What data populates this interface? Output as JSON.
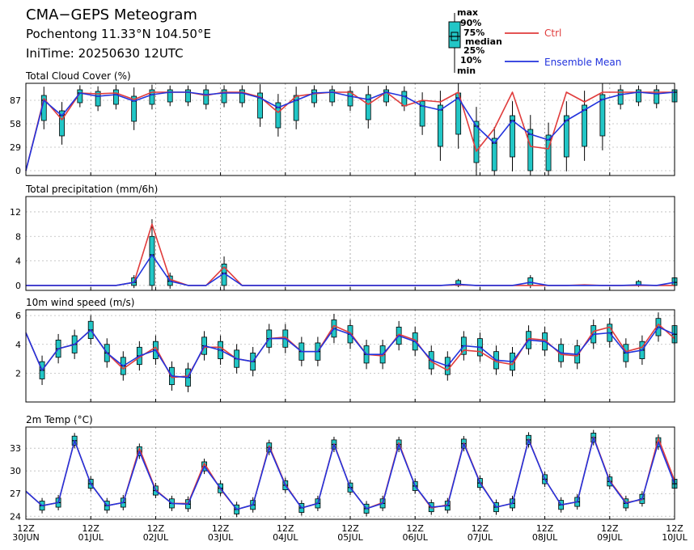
{
  "header": {
    "title": "CMA−GEPS Meteogram",
    "location": "Pochentong 11.33°N 104.50°E",
    "init_time": "IniTime: 20250630 12UTC"
  },
  "legend": {
    "box_labels": [
      "max",
      "90%",
      "75%",
      "median",
      "25%",
      "10%",
      "min"
    ],
    "ctrl_label": "Ctrl",
    "mean_label": "Ensemble Mean",
    "colors": {
      "ctrl": "#e03c3c",
      "mean": "#2233dd",
      "box": "#22c6c6"
    }
  },
  "x_axis": {
    "ticks": [
      {
        "top": "12Z",
        "bottom": "30JUN"
      },
      {
        "top": "12Z",
        "bottom": "01JUL"
      },
      {
        "top": "12Z",
        "bottom": "02JUL"
      },
      {
        "top": "12Z",
        "bottom": "03JUL"
      },
      {
        "top": "12Z",
        "bottom": "04JUL"
      },
      {
        "top": "12Z",
        "bottom": "05JUL"
      },
      {
        "top": "12Z",
        "bottom": "06JUL"
      },
      {
        "top": "12Z",
        "bottom": "07JUL"
      },
      {
        "top": "12Z",
        "bottom": "08JUL"
      },
      {
        "top": "12Z",
        "bottom": "09JUL"
      },
      {
        "top": "12Z",
        "bottom": "10JUL"
      }
    ]
  },
  "chart_data": [
    {
      "type": "line",
      "title": "Total Cloud Cover (%)",
      "ylim": [
        -6,
        108
      ],
      "yticks": [
        0,
        29,
        58,
        87
      ],
      "series": [
        {
          "name": "Ctrl",
          "values": [
            0,
            89,
            63,
            96,
            95,
            96,
            88,
            97,
            97,
            97,
            93,
            97,
            97,
            91,
            72,
            92,
            95,
            97,
            97,
            82,
            97,
            80,
            87,
            85,
            97,
            24,
            52,
            97,
            30,
            27,
            97,
            85,
            97,
            97,
            97,
            97,
            97
          ]
        },
        {
          "name": "Ensemble Mean",
          "values": [
            0,
            87,
            68,
            96,
            92,
            94,
            86,
            94,
            97,
            97,
            94,
            96,
            96,
            90,
            78,
            87,
            96,
            97,
            92,
            88,
            97,
            92,
            80,
            75,
            90,
            55,
            34,
            62,
            45,
            38,
            62,
            75,
            88,
            94,
            97,
            95,
            97
          ]
        }
      ]
    },
    {
      "type": "line",
      "title": "Total precipitation (mm/6h)",
      "ylim": [
        -0.8,
        14.5
      ],
      "yticks": [
        0,
        4,
        8,
        12
      ],
      "series": [
        {
          "name": "Ctrl",
          "values": [
            0,
            0,
            0,
            0,
            0,
            0,
            0.5,
            10,
            1,
            0,
            0,
            3,
            0,
            0,
            0,
            0,
            0,
            0,
            0,
            0,
            0,
            0,
            0,
            0,
            0.1,
            0,
            0,
            0,
            0,
            0,
            0,
            0.1,
            0,
            0,
            0,
            0,
            0
          ]
        },
        {
          "name": "Ensemble Mean",
          "values": [
            0,
            0,
            0,
            0,
            0,
            0,
            0.5,
            5,
            0.7,
            0,
            0,
            2,
            0,
            0,
            0,
            0,
            0,
            0,
            0,
            0,
            0,
            0,
            0,
            0,
            0.2,
            0,
            0,
            0,
            0.5,
            0,
            0,
            0,
            0,
            0,
            0.1,
            0,
            0.5
          ]
        }
      ]
    },
    {
      "type": "line",
      "title": "10m wind speed (m/s)",
      "ylim": [
        0,
        6.4
      ],
      "yticks": [
        2,
        4,
        6
      ],
      "series": [
        {
          "name": "Ctrl",
          "values": [
            4.8,
            2.2,
            3.7,
            4.0,
            5.0,
            3.4,
            2.3,
            3.1,
            3.8,
            1.7,
            1.8,
            3.8,
            3.8,
            3.0,
            2.8,
            4.4,
            4.5,
            3.5,
            3.5,
            5.3,
            4.8,
            3.3,
            3.2,
            4.7,
            4.3,
            2.8,
            2.2,
            3.6,
            3.5,
            2.8,
            2.6,
            4.4,
            4.3,
            3.3,
            3.2,
            4.9,
            5.2,
            3.5,
            3.8,
            5.4,
            4.4
          ]
        },
        {
          "name": "Ensemble Mean",
          "values": [
            4.8,
            2.2,
            3.7,
            4.0,
            5.0,
            3.4,
            2.5,
            3.2,
            3.6,
            1.8,
            1.7,
            3.9,
            3.6,
            3.0,
            2.8,
            4.4,
            4.4,
            3.5,
            3.5,
            5.1,
            4.7,
            3.3,
            3.3,
            4.6,
            4.2,
            2.9,
            2.5,
            3.9,
            3.8,
            2.9,
            2.8,
            4.3,
            4.2,
            3.4,
            3.3,
            4.7,
            4.8,
            3.4,
            3.6,
            5.2,
            4.7
          ]
        }
      ]
    },
    {
      "type": "line",
      "title": "2m Temp (°C)",
      "ylim": [
        23.6,
        35.8
      ],
      "yticks": [
        24,
        27,
        30,
        33
      ],
      "series": [
        {
          "name": "Ctrl",
          "values": [
            27.3,
            25.4,
            25.8,
            34.0,
            28.3,
            25.4,
            25.8,
            33.0,
            27.5,
            25.7,
            25.7,
            31.0,
            27.6,
            24.9,
            25.5,
            33.3,
            28.2,
            25.1,
            25.7,
            33.6,
            27.8,
            25.0,
            25.8,
            33.7,
            28.0,
            25.1,
            25.5,
            33.7,
            28.5,
            25.2,
            25.7,
            34.2,
            28.9,
            25.5,
            25.9,
            34.5,
            28.7,
            25.8,
            26.2,
            34.3,
            28.7
          ]
        },
        {
          "name": "Ensemble Mean",
          "values": [
            27.3,
            25.4,
            25.8,
            34.0,
            28.3,
            25.4,
            25.8,
            32.6,
            27.4,
            25.7,
            25.6,
            30.6,
            27.7,
            24.9,
            25.5,
            33.1,
            28.1,
            25.1,
            25.7,
            33.5,
            27.8,
            25.0,
            25.7,
            33.5,
            28.0,
            25.2,
            25.4,
            33.6,
            28.4,
            25.2,
            25.7,
            34.1,
            28.9,
            25.5,
            25.9,
            34.4,
            28.6,
            25.7,
            26.3,
            33.8,
            28.3
          ]
        }
      ]
    }
  ]
}
